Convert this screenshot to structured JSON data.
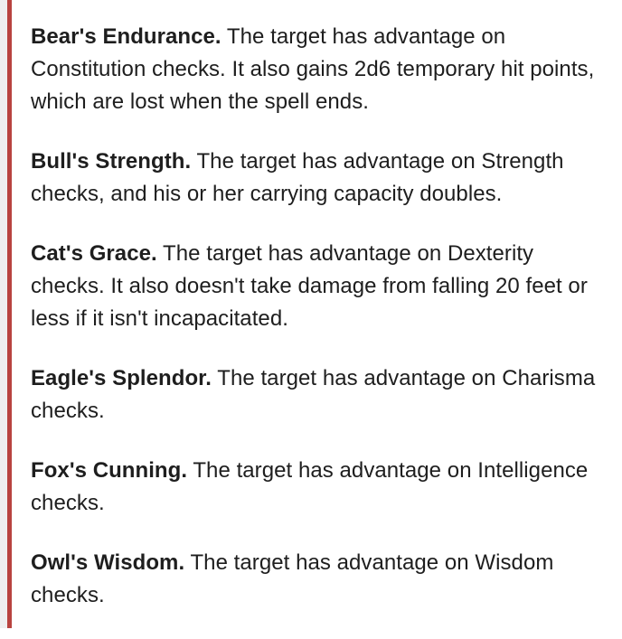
{
  "entries": [
    {
      "name": "Bear's Endurance.",
      "text": " The target has advantage on Constitution checks. It also gains 2d6 temporary hit points, which are lost when the spell ends."
    },
    {
      "name": "Bull's Strength.",
      "text": " The target has advantage on Strength checks, and his or her carrying capacity doubles."
    },
    {
      "name": "Cat's Grace.",
      "text": " The target has advantage on Dexterity checks. It also doesn't take damage from falling 20 feet or less if it isn't incapacitated."
    },
    {
      "name": "Eagle's Splendor.",
      "text": " The target has advantage on Charisma checks."
    },
    {
      "name": "Fox's Cunning.",
      "text": " The target has advantage on Intelligence checks."
    },
    {
      "name": "Owl's Wisdom.",
      "text": " The target has advantage on Wisdom checks."
    }
  ]
}
